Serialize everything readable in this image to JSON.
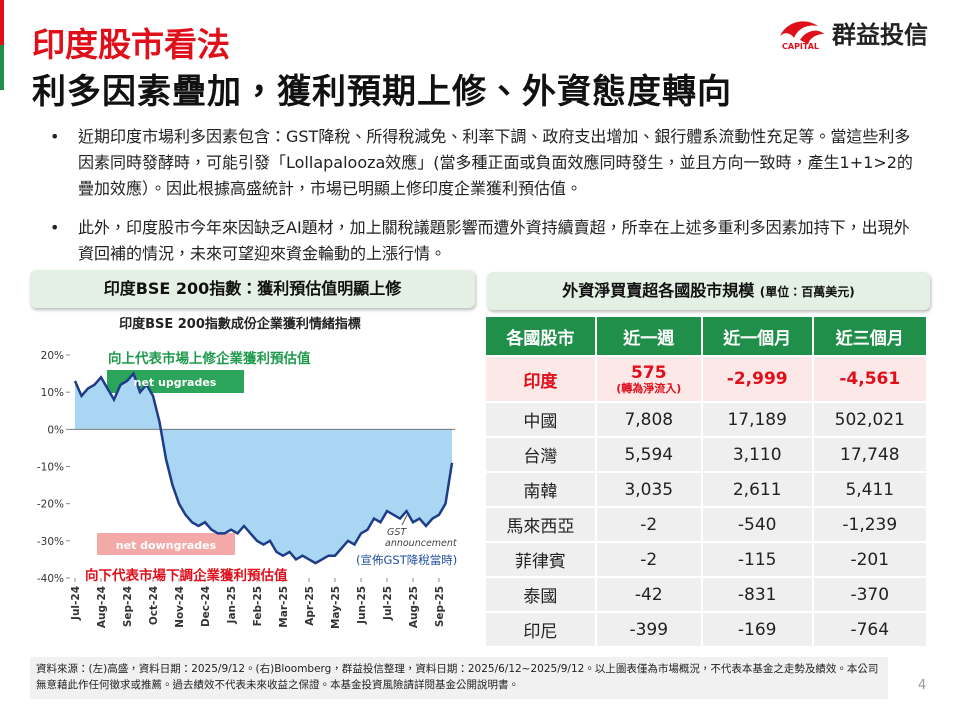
{
  "header": {
    "title": "印度股市看法",
    "subtitle": "利多因素疊加，獲利預期上修、外資態度轉向",
    "logo_small": "CAPITAL",
    "logo_text": "群益投信"
  },
  "bullets": [
    "近期印度市場利多因素包含：GST降稅、所得稅減免、利率下調、政府支出增加、銀行體系流動性充足等。當這些利多因素同時發酵時，可能引發「Lollapalooza效應」(當多種正面或負面效應同時發生，並且方向一致時，產生1+1>2的疊加效應）。因此根據高盛統計，市場已明顯上修印度企業獲利預估值。",
    "此外，印度股市今年來因缺乏AI題材，加上關稅議題影響而遭外資持續賣超，所幸在上述多重利多因素加持下，出現外資回補的情況，未來可望迎來資金輪動的上漲行情。"
  ],
  "left_panel": {
    "title": "印度BSE 200指數：獲利預估值明顯上修"
  },
  "chart_data": {
    "type": "area",
    "title": "印度BSE 200指數成份企業獲利情緒指標",
    "categories": [
      "Jul-24",
      null,
      null,
      null,
      "Aug-24",
      null,
      null,
      null,
      "Sep-24",
      null,
      null,
      null,
      "Oct-24",
      null,
      null,
      null,
      "Nov-24",
      null,
      null,
      null,
      "Dec-24",
      null,
      null,
      null,
      "Jan-25",
      null,
      null,
      null,
      "Feb-25",
      null,
      null,
      null,
      "Mar-25",
      null,
      null,
      null,
      "Apr-25",
      null,
      null,
      null,
      "May-25",
      null,
      null,
      null,
      "Jun-25",
      null,
      null,
      null,
      "Jul-25",
      null,
      null,
      null,
      "Aug-25",
      null,
      null,
      null,
      "Sep-25",
      null,
      null
    ],
    "values": [
      13,
      9,
      11,
      12,
      14,
      11,
      8,
      12,
      13,
      15,
      10,
      12,
      9,
      2,
      -8,
      -15,
      -20,
      -23,
      -25,
      -26,
      -25,
      -27,
      -28,
      -28,
      -27,
      -28,
      -26,
      -28,
      -30,
      -31,
      -30,
      -33,
      -34,
      -33,
      -35,
      -34,
      -35,
      -36,
      -35,
      -34,
      -34,
      -32,
      -30,
      -31,
      -28,
      -27,
      -24,
      -25,
      -22,
      -23,
      -24,
      -22,
      -25,
      -24,
      -26,
      -24,
      -23,
      -20,
      -9
    ],
    "color": "#1f3c88",
    "fill_color": "#a9d6f2",
    "ylim": [
      -40,
      20
    ],
    "yticks": [
      {
        "value": -40,
        "label": "-40%"
      },
      {
        "value": -30,
        "label": "-30%"
      },
      {
        "value": -20,
        "label": "-20%"
      },
      {
        "value": -10,
        "label": "-10%"
      },
      {
        "value": 0,
        "label": "0%"
      },
      {
        "value": 10,
        "label": "10%"
      },
      {
        "value": 20,
        "label": "20%"
      }
    ],
    "annotations": {
      "up_note": "向上代表市場上修企業獲利預估值",
      "up_box": "net upgrades",
      "down_box": "net downgrades",
      "down_note": "向下代表市場下調企業獲利預估值",
      "gst_1": "GST",
      "gst_2": "announcement",
      "gst_note": "(宣佈GST降稅當時)"
    }
  },
  "right_panel": {
    "title": "外資淨買賣超各國股市規模",
    "unit": "(單位：百萬美元)"
  },
  "table": {
    "header": [
      "各國股市",
      "近一週",
      "近一個月",
      "近三個月"
    ],
    "rows": [
      [
        "印度",
        "575",
        "-2,999",
        "-4,561"
      ],
      [
        "中國",
        "7,808",
        "17,189",
        "502,021"
      ],
      [
        "台灣",
        "5,594",
        "3,110",
        "17,748"
      ],
      [
        "南韓",
        "3,035",
        "2,611",
        "5,411"
      ],
      [
        "馬來西亞",
        "-2",
        "-540",
        "-1,239"
      ],
      [
        "菲律賓",
        "-2",
        "-115",
        "-201"
      ],
      [
        "泰國",
        "-42",
        "-831",
        "-370"
      ],
      [
        "印尼",
        "-399",
        "-169",
        "-764"
      ]
    ],
    "india_note": "(轉為淨流入)"
  },
  "footnote": "資料來源：(左)高盛，資料日期：2025/9/12。(右)Bloomberg，群益投信整理，資料日期：2025/6/12~2025/9/12。以上圖表僅為市場概況，不代表本基金之走勢及績效。本公司無意藉此作任何徵求或推薦。過去績效不代表未來收益之保證。本基金投資風險請詳閱基金公開說明書。",
  "page_number": "4"
}
